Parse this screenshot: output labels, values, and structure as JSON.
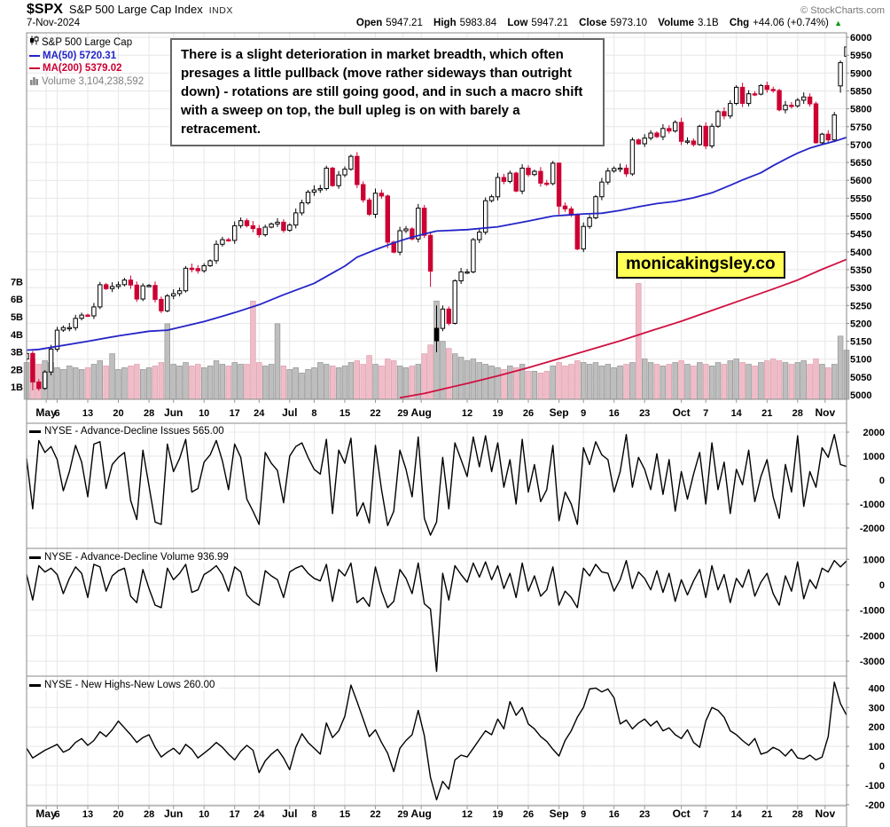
{
  "header": {
    "symbol": "$SPX",
    "name": "S&P 500 Large Cap Index",
    "exchange": "INDX",
    "date": "7-Nov-2024",
    "copyright": "© StockCharts.com",
    "quote": [
      {
        "label": "Open",
        "value": "5947.21"
      },
      {
        "label": "High",
        "value": "5983.84"
      },
      {
        "label": "Low",
        "value": "5947.21"
      },
      {
        "label": "Close",
        "value": "5973.10"
      },
      {
        "label": "Volume",
        "value": "3.1B"
      },
      {
        "label": "Chg",
        "value": "+44.06 (+0.74%)"
      }
    ],
    "chg_arrow": "▲",
    "chg_color": "#009900"
  },
  "legend": {
    "series": "S&P 500 Large Cap",
    "ma50": "MA(50) 5720.31",
    "ma200": "MA(200) 5379.02",
    "volume": "Volume 3,104,238,592"
  },
  "annotation": {
    "text": "There is a slight deterioration in market breadth, which often presages a little pullback (move rather sideways than outright down) - rotations are still going good, and in such a macro shift with a sweep on top, the bull upleg is on with barely a retracement."
  },
  "badge": {
    "text": "monicakingsley.co",
    "bg": "#FFFF55"
  },
  "colors": {
    "candle_down": "#CC0033",
    "candle_up_border": "#000000",
    "ma50": "#2424C8",
    "ma200": "#D01040",
    "volume_up": "#BEBEBE",
    "volume_down": "#F0BCC8",
    "grid": "#E7E7E7",
    "frame": "#888888",
    "indicator_line": "#000000"
  },
  "chart_data": [
    {
      "type": "candlestick",
      "name": "S&P 500 Large Cap ($SPX) daily with volume",
      "y_axis": {
        "min": 5000,
        "max": 6000,
        "tick_step": 50
      },
      "volume_axis": {
        "unit": "B",
        "ticks": [
          1,
          2,
          3,
          4,
          5,
          6,
          7
        ]
      },
      "x_ticks": [
        {
          "label": "May",
          "index": 3.2,
          "bold": true
        },
        {
          "label": "6",
          "index": 5,
          "bold": false
        },
        {
          "label": "13",
          "index": 10,
          "bold": false
        },
        {
          "label": "20",
          "index": 15,
          "bold": false
        },
        {
          "label": "28",
          "index": 20,
          "bold": false
        },
        {
          "label": "Jun",
          "index": 24,
          "bold": true
        },
        {
          "label": "10",
          "index": 29,
          "bold": false
        },
        {
          "label": "17",
          "index": 34,
          "bold": false
        },
        {
          "label": "24",
          "index": 38,
          "bold": false
        },
        {
          "label": "Jul",
          "index": 43,
          "bold": true
        },
        {
          "label": "8",
          "index": 47,
          "bold": false
        },
        {
          "label": "15",
          "index": 52,
          "bold": false
        },
        {
          "label": "22",
          "index": 57,
          "bold": false
        },
        {
          "label": "29",
          "index": 61.5,
          "bold": false
        },
        {
          "label": "Aug",
          "index": 64.5,
          "bold": true
        },
        {
          "label": "12",
          "index": 72,
          "bold": false
        },
        {
          "label": "19",
          "index": 77,
          "bold": false
        },
        {
          "label": "26",
          "index": 82,
          "bold": false
        },
        {
          "label": "Sep",
          "index": 87,
          "bold": true
        },
        {
          "label": "9",
          "index": 91,
          "bold": false
        },
        {
          "label": "16",
          "index": 96,
          "bold": false
        },
        {
          "label": "23",
          "index": 101,
          "bold": false
        },
        {
          "label": "Oct",
          "index": 107,
          "bold": true
        },
        {
          "label": "7",
          "index": 111,
          "bold": false
        },
        {
          "label": "14",
          "index": 116,
          "bold": false
        },
        {
          "label": "21",
          "index": 121,
          "bold": false
        },
        {
          "label": "28",
          "index": 126,
          "bold": false
        },
        {
          "label": "Nov",
          "index": 130.5,
          "bold": true
        }
      ],
      "closes": [
        5116,
        5036,
        5018,
        5064,
        5128,
        5181,
        5188,
        5188,
        5214,
        5223,
        5221,
        5246,
        5308,
        5297,
        5303,
        5308,
        5321,
        5307,
        5268,
        5305,
        5306,
        5267,
        5235,
        5277,
        5283,
        5291,
        5354,
        5353,
        5347,
        5361,
        5375,
        5421,
        5434,
        5432,
        5473,
        5487,
        5473,
        5465,
        5448,
        5469,
        5478,
        5483,
        5460,
        5475,
        5509,
        5537,
        5567,
        5573,
        5577,
        5634,
        5585,
        5615,
        5631,
        5667,
        5588,
        5545,
        5505,
        5564,
        5556,
        5427,
        5399,
        5459,
        5464,
        5436,
        5522,
        5446,
        5346,
        5186,
        5240,
        5200,
        5319,
        5344,
        5344,
        5434,
        5455,
        5543,
        5554,
        5608,
        5597,
        5620,
        5570,
        5634,
        5616,
        5625,
        5592,
        5591,
        5648,
        5528,
        5520,
        5503,
        5408,
        5471,
        5495,
        5554,
        5595,
        5626,
        5633,
        5634,
        5618,
        5713,
        5702,
        5718,
        5732,
        5722,
        5745,
        5738,
        5762,
        5709,
        5710,
        5700,
        5751,
        5696,
        5751,
        5792,
        5780,
        5815,
        5860,
        5815,
        5842,
        5841,
        5865,
        5854,
        5851,
        5797,
        5810,
        5808,
        5824,
        5833,
        5814,
        5705,
        5729,
        5713,
        5783,
        5929,
        5973
      ],
      "ohlc_overrides": {
        "0": [
          5100,
          5125,
          5085,
          5116
        ],
        "1": [
          5116,
          5123,
          5013,
          5036
        ],
        "59": [
          5556,
          5560,
          5410,
          5427
        ],
        "66": [
          5446,
          5455,
          5302,
          5346
        ],
        "67": [
          5151,
          5250,
          5119,
          5186
        ],
        "87": [
          5648,
          5650,
          5504,
          5528
        ],
        "129": [
          5814,
          5820,
          5703,
          5705
        ],
        "133": [
          5864,
          5935,
          5845,
          5929
        ],
        "134": [
          5947,
          5984,
          5947,
          5973
        ]
      },
      "volume_billions": [
        2.4,
        2.6,
        2.3,
        2.5,
        2.4,
        2.1,
        2.0,
        2.2,
        2.1,
        2.0,
        2.1,
        2.3,
        2.5,
        2.2,
        2.9,
        2.0,
        2.1,
        2.2,
        2.3,
        2.0,
        2.1,
        2.2,
        2.4,
        4.6,
        2.3,
        2.2,
        2.4,
        2.2,
        2.3,
        2.1,
        2.2,
        2.5,
        2.3,
        2.2,
        2.4,
        2.3,
        2.3,
        5.9,
        2.4,
        2.2,
        2.3,
        4.6,
        2.2,
        2.0,
        2.1,
        1.8,
        2.0,
        2.1,
        2.4,
        2.3,
        2.2,
        2.1,
        2.2,
        2.4,
        2.5,
        2.3,
        2.8,
        2.3,
        2.2,
        2.6,
        2.5,
        2.2,
        2.1,
        2.2,
        2.3,
        2.9,
        3.4,
        5.9,
        3.6,
        3.2,
        2.9,
        2.7,
        2.5,
        2.6,
        2.4,
        2.3,
        2.2,
        2.1,
        2.0,
        2.2,
        2.1,
        2.3,
        1.9,
        1.9,
        1.8,
        1.9,
        2.2,
        2.4,
        2.2,
        2.3,
        2.5,
        2.4,
        2.3,
        2.4,
        2.2,
        2.3,
        2.1,
        2.2,
        2.3,
        2.4,
        6.9,
        2.6,
        2.4,
        2.3,
        2.2,
        2.3,
        2.4,
        2.5,
        2.3,
        2.2,
        2.4,
        2.3,
        2.2,
        2.4,
        2.3,
        2.5,
        2.6,
        2.4,
        2.3,
        2.2,
        2.4,
        2.5,
        2.6,
        2.5,
        2.4,
        2.3,
        2.4,
        2.5,
        2.3,
        2.6,
        2.3,
        2.1,
        2.3,
        3.9,
        3.1
      ],
      "ma50": {
        "label": "MA(50) 5720.31",
        "last": 5720.31,
        "anchors": [
          [
            0,
            5125
          ],
          [
            2,
            5127
          ],
          [
            10,
            5150
          ],
          [
            15,
            5165
          ],
          [
            20,
            5178
          ],
          [
            23,
            5181
          ],
          [
            29,
            5205
          ],
          [
            34,
            5230
          ],
          [
            38,
            5252
          ],
          [
            42,
            5280
          ],
          [
            47,
            5312
          ],
          [
            52,
            5360
          ],
          [
            54,
            5385
          ],
          [
            57,
            5406
          ],
          [
            60,
            5425
          ],
          [
            62,
            5436
          ],
          [
            65,
            5450
          ],
          [
            67,
            5458
          ],
          [
            72,
            5462
          ],
          [
            77,
            5470
          ],
          [
            82,
            5486
          ],
          [
            86,
            5500
          ],
          [
            91,
            5506
          ],
          [
            94,
            5508
          ],
          [
            97,
            5516
          ],
          [
            100,
            5526
          ],
          [
            103,
            5535
          ],
          [
            106,
            5541
          ],
          [
            109,
            5551
          ],
          [
            112,
            5565
          ],
          [
            115,
            5586
          ],
          [
            117,
            5601
          ],
          [
            120,
            5621
          ],
          [
            122,
            5641
          ],
          [
            124,
            5659
          ],
          [
            126,
            5676
          ],
          [
            128,
            5690
          ],
          [
            130,
            5700
          ],
          [
            132,
            5709
          ],
          [
            134,
            5720
          ]
        ]
      },
      "ma200": {
        "label": "MA(200) 5379.02",
        "last": 5379.02,
        "anchors": [
          [
            61,
            4992
          ],
          [
            65,
            5004
          ],
          [
            69,
            5020
          ],
          [
            72,
            5032
          ],
          [
            77,
            5053
          ],
          [
            82,
            5076
          ],
          [
            87,
            5101
          ],
          [
            92,
            5126
          ],
          [
            97,
            5151
          ],
          [
            102,
            5179
          ],
          [
            107,
            5206
          ],
          [
            112,
            5236
          ],
          [
            117,
            5266
          ],
          [
            122,
            5296
          ],
          [
            126,
            5321
          ],
          [
            130,
            5351
          ],
          [
            132,
            5365
          ],
          [
            134,
            5379
          ]
        ]
      }
    },
    {
      "type": "line",
      "label": "NYSE - Advance-Decline Issues 565.00",
      "title": "NYSE - Advance-Decline Issues",
      "last": 565.0,
      "y_ticks": [
        2000,
        1000,
        0,
        -1000,
        -2000
      ],
      "values": [
        900,
        -1200,
        1650,
        1150,
        1400,
        850,
        -450,
        350,
        1450,
        750,
        -700,
        1500,
        1600,
        -350,
        650,
        950,
        1150,
        -850,
        -1650,
        1250,
        -250,
        -1750,
        -1850,
        1500,
        350,
        900,
        1700,
        -500,
        -350,
        750,
        1050,
        1650,
        800,
        -400,
        1500,
        950,
        -800,
        -1300,
        -1850,
        1150,
        700,
        400,
        -950,
        1000,
        1400,
        1550,
        950,
        450,
        250,
        1700,
        -1400,
        1250,
        700,
        1750,
        -1500,
        -950,
        -1800,
        1450,
        -400,
        -1900,
        -1300,
        1250,
        450,
        -700,
        1800,
        -1600,
        -2300,
        -1750,
        950,
        -1200,
        1550,
        850,
        150,
        1800,
        550,
        1850,
        350,
        1550,
        -300,
        850,
        -1000,
        1700,
        -500,
        650,
        -900,
        -400,
        1450,
        -1700,
        -500,
        -1000,
        -1850,
        1350,
        650,
        1600,
        1050,
        850,
        -500,
        350,
        1900,
        -300,
        950,
        450,
        -400,
        1100,
        -600,
        850,
        -1300,
        350,
        -800,
        250,
        1150,
        -1000,
        1550,
        -400,
        750,
        -1400,
        450,
        -200,
        1250,
        -900,
        150,
        850,
        -700,
        -1600,
        650,
        -500,
        1850,
        -1100,
        350,
        -300,
        1350,
        950,
        1900,
        650,
        565
      ]
    },
    {
      "type": "line",
      "label": "NYSE - Advance-Decline Volume 936.99",
      "title": "NYSE - Advance-Decline Volume",
      "last": 936.99,
      "y_ticks": [
        1000,
        0,
        -1000,
        -2000,
        -3000
      ],
      "values": [
        400,
        -600,
        750,
        500,
        650,
        400,
        -350,
        250,
        700,
        450,
        -500,
        800,
        700,
        -250,
        350,
        550,
        650,
        -450,
        -700,
        600,
        -150,
        -800,
        -900,
        650,
        200,
        450,
        800,
        -300,
        -200,
        400,
        550,
        750,
        400,
        -250,
        700,
        500,
        -400,
        -650,
        -800,
        550,
        350,
        200,
        -500,
        500,
        650,
        750,
        450,
        250,
        150,
        800,
        -650,
        600,
        350,
        850,
        -700,
        -500,
        -850,
        700,
        -250,
        -900,
        -650,
        600,
        250,
        -350,
        850,
        -750,
        -950,
        -3400,
        450,
        -600,
        750,
        400,
        100,
        850,
        300,
        900,
        200,
        750,
        -150,
        450,
        -500,
        850,
        -250,
        350,
        -450,
        -200,
        700,
        -800,
        -250,
        -500,
        -900,
        650,
        350,
        800,
        500,
        450,
        -250,
        200,
        950,
        -150,
        500,
        250,
        -200,
        550,
        -300,
        450,
        -650,
        200,
        -400,
        150,
        600,
        -500,
        750,
        -200,
        400,
        -700,
        250,
        -100,
        600,
        -450,
        100,
        450,
        -350,
        -800,
        350,
        -250,
        900,
        -550,
        200,
        -150,
        650,
        500,
        950,
        700,
        937
      ]
    },
    {
      "type": "line",
      "label": "NYSE - New Highs-New Lows 260.00",
      "title": "NYSE - New Highs-New Lows",
      "last": 260.0,
      "y_ticks": [
        400,
        300,
        200,
        100,
        0,
        -100,
        -200
      ],
      "values": [
        90,
        40,
        60,
        80,
        95,
        110,
        70,
        85,
        120,
        140,
        105,
        130,
        175,
        150,
        185,
        230,
        195,
        160,
        120,
        145,
        160,
        95,
        45,
        70,
        90,
        60,
        110,
        85,
        40,
        65,
        90,
        120,
        95,
        60,
        30,
        75,
        105,
        80,
        -35,
        25,
        60,
        85,
        40,
        -20,
        95,
        165,
        120,
        90,
        60,
        220,
        145,
        180,
        255,
        415,
        330,
        240,
        150,
        185,
        120,
        65,
        -30,
        90,
        130,
        160,
        285,
        155,
        -60,
        -175,
        -80,
        -120,
        30,
        55,
        45,
        90,
        135,
        180,
        160,
        240,
        190,
        330,
        260,
        300,
        215,
        190,
        150,
        125,
        85,
        50,
        130,
        180,
        250,
        300,
        395,
        400,
        380,
        395,
        350,
        215,
        235,
        190,
        220,
        240,
        205,
        230,
        180,
        195,
        160,
        140,
        185,
        120,
        95,
        230,
        300,
        285,
        250,
        180,
        160,
        130,
        105,
        140,
        60,
        70,
        95,
        80,
        50,
        85,
        40,
        35,
        55,
        30,
        45,
        150,
        430,
        320,
        260
      ]
    }
  ]
}
